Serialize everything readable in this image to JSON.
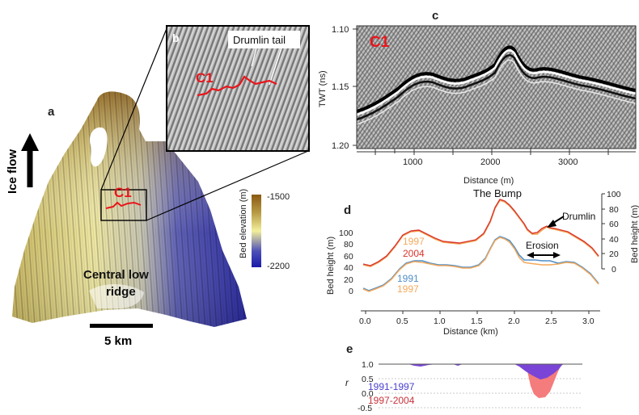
{
  "panels": {
    "a": {
      "letter": "a",
      "ice_flow_label": "Ice flow",
      "profile_label": "C1",
      "ridge_label_line1": "Central low",
      "ridge_label_line2": "ridge",
      "scale_label": "5 km",
      "colorbar": {
        "title": "Bed elevation (m)",
        "max": "-1500",
        "min": "-2200",
        "colors": [
          "#8a5a12",
          "#b79a45",
          "#f3ef9b",
          "#4d4fb8",
          "#1a1aa8"
        ]
      }
    },
    "b": {
      "letter": "b",
      "drumlin_label": "Drumlin tail",
      "profile_label": "C1"
    },
    "c": {
      "letter": "c",
      "profile_label": "C1",
      "ylabel": "TWT (ns)",
      "xlabel": "Distance (m)",
      "y_ticks": [
        "1.10",
        "1.15",
        "1.20"
      ],
      "x_ticks": [
        "1000",
        "2000",
        "3000"
      ]
    },
    "d": {
      "letter": "d",
      "title": "The Bump",
      "drumlin_label": "Drumlin",
      "erosion_label": "Erosion",
      "left_ylabel": "Bed height (m)",
      "right_ylabel": "Bed height (m)",
      "xlabel": "Distance (km)",
      "left_y_ticks": [
        "0",
        "20",
        "40",
        "60",
        "80",
        "100"
      ],
      "right_y_ticks": [
        "0",
        "20",
        "40",
        "60",
        "80",
        "100"
      ],
      "x_ticks": [
        "0.0",
        "0.5",
        "1.0",
        "1.5",
        "2.0",
        "2.5",
        "3.0"
      ],
      "upper_legend": [
        "1997",
        "2004"
      ],
      "lower_legend": [
        "1991",
        "1997"
      ]
    },
    "e": {
      "letter": "e",
      "ylabel": "r",
      "y_ticks": [
        "1.0",
        "0.5",
        "0.0",
        "-0.5"
      ],
      "legend": [
        "1991-1997",
        "1997-2004"
      ]
    }
  },
  "colors": {
    "profile_red": "#e8151b",
    "series_1991": "#4f8fc8",
    "series_1997": "#f3a95c",
    "series_2004": "#d9342b",
    "fill_1991_1997": "#7a45d6",
    "fill_1997_2004": "#f47c7c"
  }
}
